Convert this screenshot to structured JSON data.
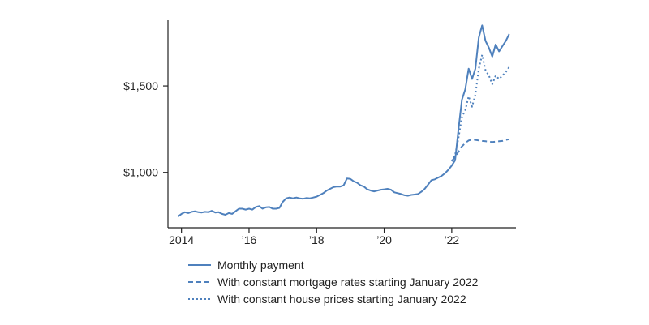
{
  "chart_data": {
    "type": "line",
    "title": "",
    "xlabel": "",
    "ylabel": "",
    "xlim": [
      2013.6,
      2023.9
    ],
    "ylim": [
      680,
      1880
    ],
    "grid": false,
    "legend_position": "bottom",
    "colors": {
      "line": "#4f81bd",
      "axis": "#222222"
    },
    "x_ticks": [
      {
        "value": 2014,
        "label": "2014"
      },
      {
        "value": 2016,
        "label": "’16"
      },
      {
        "value": 2018,
        "label": "’18"
      },
      {
        "value": 2020,
        "label": "’20"
      },
      {
        "value": 2022,
        "label": "’22"
      }
    ],
    "y_ticks": [
      {
        "value": 1000,
        "label": "$1,000"
      },
      {
        "value": 1500,
        "label": "$1,500"
      }
    ],
    "series": [
      {
        "name": "Monthly payment",
        "style": "solid",
        "points": [
          [
            2013.9,
            745
          ],
          [
            2014.0,
            760
          ],
          [
            2014.1,
            770
          ],
          [
            2014.2,
            765
          ],
          [
            2014.3,
            772
          ],
          [
            2014.4,
            775
          ],
          [
            2014.5,
            770
          ],
          [
            2014.6,
            768
          ],
          [
            2014.7,
            772
          ],
          [
            2014.8,
            770
          ],
          [
            2014.9,
            778
          ],
          [
            2015.0,
            768
          ],
          [
            2015.1,
            770
          ],
          [
            2015.2,
            760
          ],
          [
            2015.3,
            755
          ],
          [
            2015.4,
            765
          ],
          [
            2015.5,
            760
          ],
          [
            2015.6,
            775
          ],
          [
            2015.7,
            790
          ],
          [
            2015.8,
            790
          ],
          [
            2015.9,
            785
          ],
          [
            2016.0,
            790
          ],
          [
            2016.1,
            785
          ],
          [
            2016.2,
            800
          ],
          [
            2016.3,
            805
          ],
          [
            2016.4,
            790
          ],
          [
            2016.5,
            798
          ],
          [
            2016.6,
            800
          ],
          [
            2016.7,
            790
          ],
          [
            2016.8,
            790
          ],
          [
            2016.9,
            795
          ],
          [
            2017.0,
            830
          ],
          [
            2017.1,
            850
          ],
          [
            2017.2,
            855
          ],
          [
            2017.3,
            850
          ],
          [
            2017.4,
            855
          ],
          [
            2017.5,
            850
          ],
          [
            2017.6,
            848
          ],
          [
            2017.7,
            852
          ],
          [
            2017.8,
            850
          ],
          [
            2017.9,
            855
          ],
          [
            2018.0,
            860
          ],
          [
            2018.1,
            870
          ],
          [
            2018.2,
            880
          ],
          [
            2018.3,
            895
          ],
          [
            2018.4,
            905
          ],
          [
            2018.5,
            915
          ],
          [
            2018.6,
            918
          ],
          [
            2018.7,
            918
          ],
          [
            2018.8,
            925
          ],
          [
            2018.9,
            965
          ],
          [
            2019.0,
            962
          ],
          [
            2019.1,
            948
          ],
          [
            2019.2,
            940
          ],
          [
            2019.3,
            925
          ],
          [
            2019.4,
            918
          ],
          [
            2019.5,
            902
          ],
          [
            2019.6,
            895
          ],
          [
            2019.7,
            890
          ],
          [
            2019.8,
            895
          ],
          [
            2019.9,
            900
          ],
          [
            2020.0,
            902
          ],
          [
            2020.1,
            905
          ],
          [
            2020.2,
            900
          ],
          [
            2020.3,
            885
          ],
          [
            2020.4,
            880
          ],
          [
            2020.5,
            875
          ],
          [
            2020.6,
            868
          ],
          [
            2020.7,
            865
          ],
          [
            2020.8,
            870
          ],
          [
            2020.9,
            872
          ],
          [
            2021.0,
            875
          ],
          [
            2021.1,
            888
          ],
          [
            2021.2,
            905
          ],
          [
            2021.3,
            930
          ],
          [
            2021.4,
            955
          ],
          [
            2021.5,
            960
          ],
          [
            2021.6,
            970
          ],
          [
            2021.7,
            980
          ],
          [
            2021.8,
            995
          ],
          [
            2021.9,
            1015
          ],
          [
            2022.0,
            1040
          ],
          [
            2022.1,
            1070
          ],
          [
            2022.2,
            1250
          ],
          [
            2022.3,
            1420
          ],
          [
            2022.4,
            1480
          ],
          [
            2022.5,
            1600
          ],
          [
            2022.6,
            1540
          ],
          [
            2022.7,
            1600
          ],
          [
            2022.8,
            1780
          ],
          [
            2022.9,
            1850
          ],
          [
            2023.0,
            1760
          ],
          [
            2023.1,
            1720
          ],
          [
            2023.2,
            1670
          ],
          [
            2023.3,
            1740
          ],
          [
            2023.4,
            1700
          ],
          [
            2023.5,
            1730
          ],
          [
            2023.6,
            1760
          ],
          [
            2023.7,
            1800
          ]
        ]
      },
      {
        "name": "With constant mortgage rates starting January 2022",
        "style": "dashed",
        "points": [
          [
            2022.0,
            1065
          ],
          [
            2022.1,
            1090
          ],
          [
            2022.2,
            1120
          ],
          [
            2022.3,
            1150
          ],
          [
            2022.4,
            1170
          ],
          [
            2022.5,
            1185
          ],
          [
            2022.6,
            1190
          ],
          [
            2022.7,
            1188
          ],
          [
            2022.8,
            1185
          ],
          [
            2022.9,
            1182
          ],
          [
            2023.0,
            1180
          ],
          [
            2023.1,
            1178
          ],
          [
            2023.2,
            1176
          ],
          [
            2023.3,
            1178
          ],
          [
            2023.4,
            1180
          ],
          [
            2023.5,
            1182
          ],
          [
            2023.6,
            1188
          ],
          [
            2023.7,
            1192
          ]
        ]
      },
      {
        "name": "With constant house prices starting January 2022",
        "style": "dotted",
        "points": [
          [
            2022.0,
            1065
          ],
          [
            2022.1,
            1100
          ],
          [
            2022.2,
            1200
          ],
          [
            2022.3,
            1320
          ],
          [
            2022.4,
            1360
          ],
          [
            2022.5,
            1440
          ],
          [
            2022.6,
            1380
          ],
          [
            2022.7,
            1450
          ],
          [
            2022.8,
            1600
          ],
          [
            2022.9,
            1680
          ],
          [
            2023.0,
            1590
          ],
          [
            2023.1,
            1560
          ],
          [
            2023.2,
            1510
          ],
          [
            2023.3,
            1560
          ],
          [
            2023.4,
            1540
          ],
          [
            2023.5,
            1560
          ],
          [
            2023.6,
            1580
          ],
          [
            2023.7,
            1610
          ]
        ]
      }
    ]
  }
}
